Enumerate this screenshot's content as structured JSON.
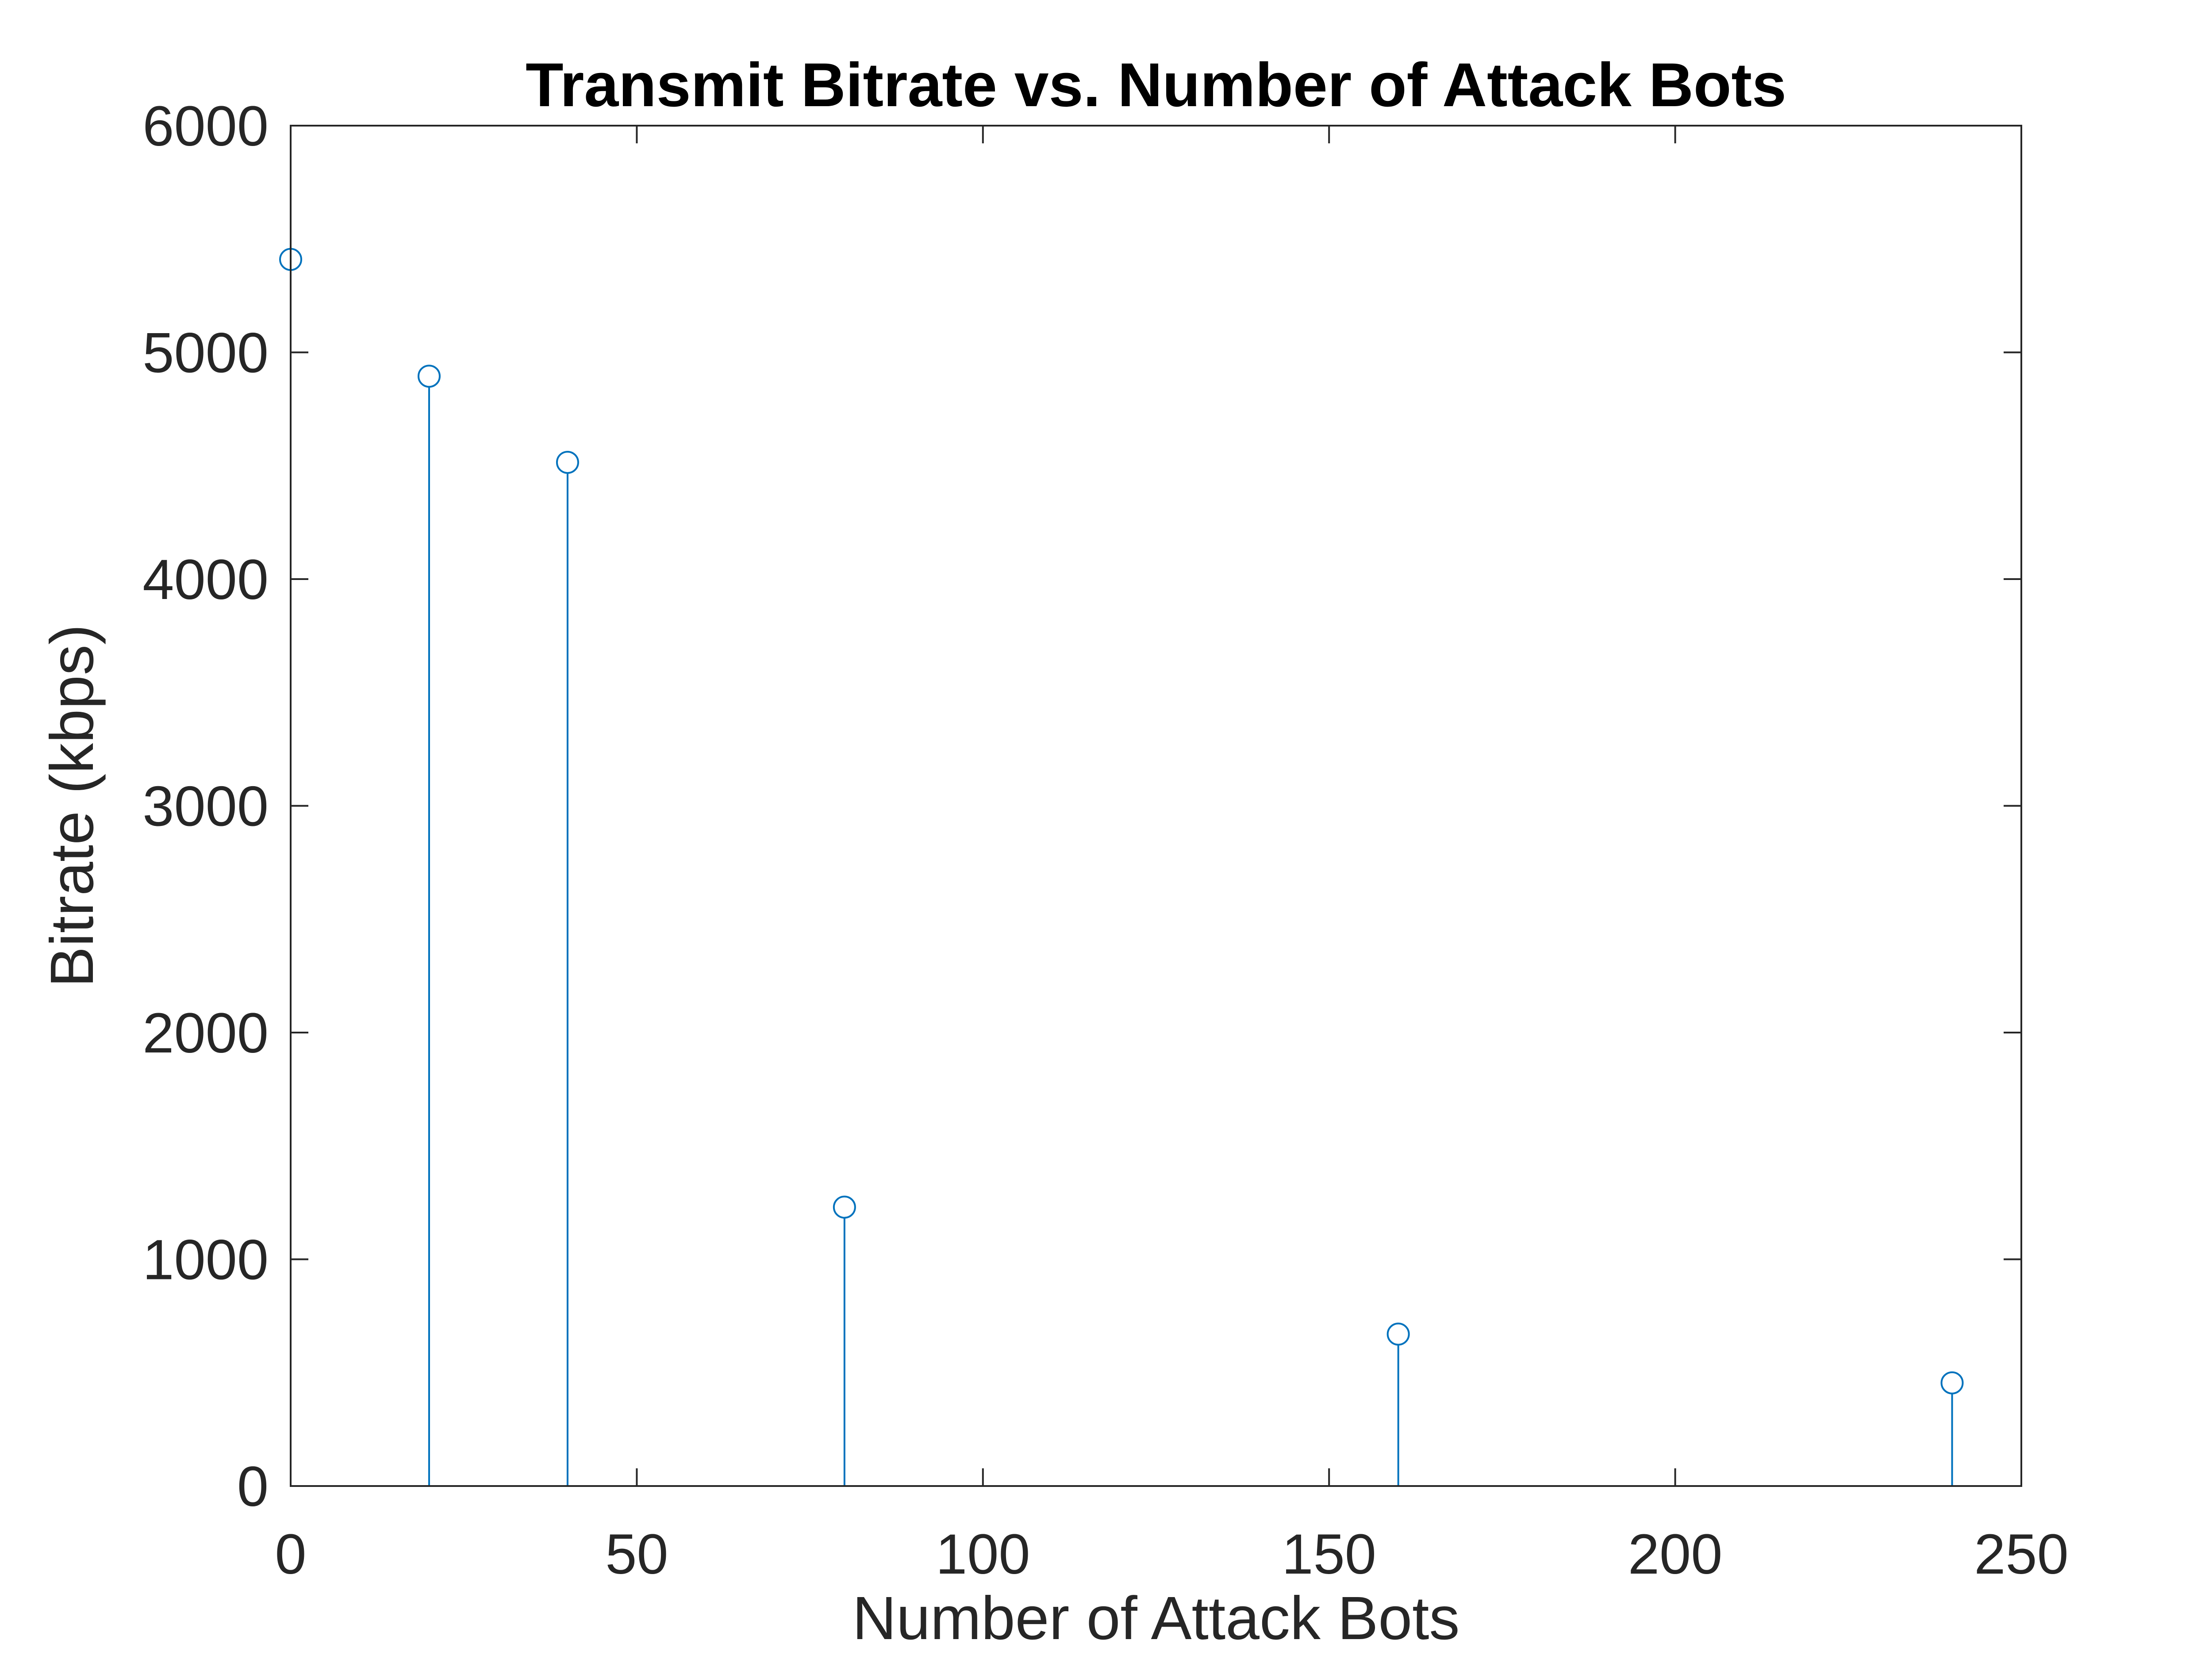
{
  "chart_data": {
    "type": "stem",
    "title": "Transmit Bitrate vs. Number of Attack Bots",
    "xlabel": "Number of Attack Bots",
    "ylabel": "Bitrate (kbps)",
    "xlim": [
      0,
      250
    ],
    "ylim": [
      0,
      6000
    ],
    "xticks": [
      0,
      50,
      100,
      150,
      200,
      250
    ],
    "yticks": [
      0,
      1000,
      2000,
      3000,
      4000,
      5000,
      6000
    ],
    "grid": false,
    "box": true,
    "series": [
      {
        "color": "#0072BD",
        "marker": "circle-open",
        "x": [
          0,
          20,
          40,
          80,
          160,
          240
        ],
        "y": [
          5410,
          4895,
          4515,
          1230,
          670,
          455
        ]
      }
    ]
  }
}
